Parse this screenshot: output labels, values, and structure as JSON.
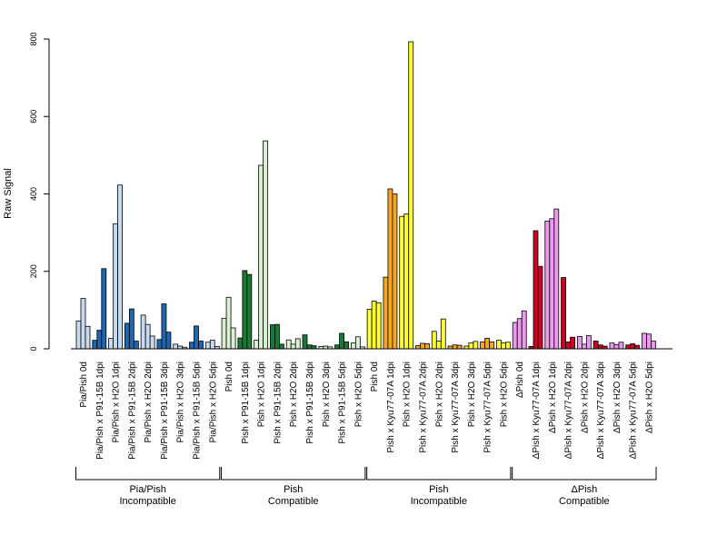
{
  "chart_data": {
    "type": "bar",
    "ylabel": "Raw Signal",
    "ylim": [
      0,
      800
    ],
    "yticks": [
      0,
      200,
      400,
      600,
      800
    ],
    "grid": false,
    "categories": [
      "Pia/Pish 0d",
      "Pia/Pish x P91-15B 1dpi",
      "Pia/Pish x H2O 1dpi",
      "Pia/Pish x P91-15B 2dpi",
      "Pia/Pish x H2O 2dpi",
      "Pia/Pish x P91-15B 3dpi",
      "Pia/Pish x H2O 3dpi",
      "Pia/Pish x P91-15B 5dpi",
      "Pia/Pish x H2O 5dpi",
      "Pish 0d",
      "Pish x P91-15B 1dpi",
      "Pish x H2O 1dpi",
      "Pish x P91-15B 2dpi",
      "Pish x H2O 2dpi",
      "Pish x P91-15B 3dpi",
      "Pish x H2O 3dpi",
      "Pish x P91-15B 5dpi",
      "Pish x H2O 5dpi",
      "Pish 0d",
      "Pish x Kyu77-07A 1dpi",
      "Pish x H2O 1dpi",
      "Pish x Kyu77-07A 2dpi",
      "Pish x H2O 2dpi",
      "Pish x Kyu77-07A 3dpi",
      "Pish x H2O 3dpi",
      "Pish x Kyu77-07A 5dpi",
      "Pish x H2O 5dpi",
      "ΔPish 0d",
      "ΔPish x Kyu77-07A 1dpi",
      "ΔPish x H2O 1dpi",
      "ΔPish x Kyu77-07A 2dpi",
      "ΔPish x H2O 2dpi",
      "ΔPish x Kyu77-07A 3dpi",
      "ΔPish x H2O 3dpi",
      "ΔPish x Kyu77-07A 5dpi",
      "ΔPish x H2O 5dpi"
    ],
    "replicate_values": [
      [
        72,
        130,
        58
      ],
      [
        22,
        48,
        207
      ],
      [
        27,
        323,
        423
      ],
      [
        66,
        103,
        20
      ],
      [
        87,
        63,
        33
      ],
      [
        24,
        116,
        43
      ],
      [
        12,
        7,
        4
      ],
      [
        17,
        59,
        20
      ],
      [
        17,
        22,
        6
      ],
      [
        79,
        133,
        54
      ],
      [
        28,
        202,
        192
      ],
      [
        22,
        474,
        537
      ],
      [
        62,
        63,
        12
      ],
      [
        23,
        12,
        26
      ],
      [
        36,
        10,
        8
      ],
      [
        6,
        7,
        5
      ],
      [
        10,
        40,
        18
      ],
      [
        15,
        31,
        5
      ],
      [
        102,
        123,
        119
      ],
      [
        185,
        413,
        400
      ],
      [
        342,
        348,
        793
      ],
      [
        8,
        14,
        13
      ],
      [
        45,
        20,
        77
      ],
      [
        7,
        10,
        9
      ],
      [
        7,
        15,
        19
      ],
      [
        18,
        27,
        18
      ],
      [
        22,
        15,
        17
      ],
      [
        68,
        78,
        98
      ],
      [
        6,
        305,
        213
      ],
      [
        330,
        336,
        361
      ],
      [
        184,
        18,
        30
      ],
      [
        32,
        12,
        34
      ],
      [
        20,
        10,
        7
      ],
      [
        15,
        11,
        17
      ],
      [
        10,
        13,
        9
      ],
      [
        40,
        38,
        20
      ]
    ],
    "category_colors": [
      "#c6dbef",
      "#2166ac",
      "#c6dbef",
      "#2166ac",
      "#c6dbef",
      "#2166ac",
      "#c6dbef",
      "#2166ac",
      "#c6dbef",
      "#d9f0d3",
      "#1b7837",
      "#d9f0d3",
      "#1b7837",
      "#d9f0d3",
      "#1b7837",
      "#d9f0d3",
      "#1b7837",
      "#d9f0d3",
      "#ffff33",
      "#f5a623",
      "#ffff33",
      "#f5a623",
      "#ffff33",
      "#f5a623",
      "#ffff33",
      "#f5a623",
      "#ffff33",
      "#ee99ee",
      "#cc0022",
      "#ee99ee",
      "#cc0022",
      "#ee99ee",
      "#cc0022",
      "#ee99ee",
      "#cc0022",
      "#ee99ee"
    ],
    "groups": [
      {
        "label_line1": "Pia/Pish",
        "label_line2": "Incompatible",
        "start": 0,
        "end": 8
      },
      {
        "label_line1": "Pish",
        "label_line2": "Compatible",
        "start": 9,
        "end": 17
      },
      {
        "label_line1": "Pish",
        "label_line2": "Incompatible",
        "start": 18,
        "end": 26
      },
      {
        "label_line1": "ΔPish",
        "label_line2": "Compatible",
        "start": 27,
        "end": 35
      }
    ]
  }
}
